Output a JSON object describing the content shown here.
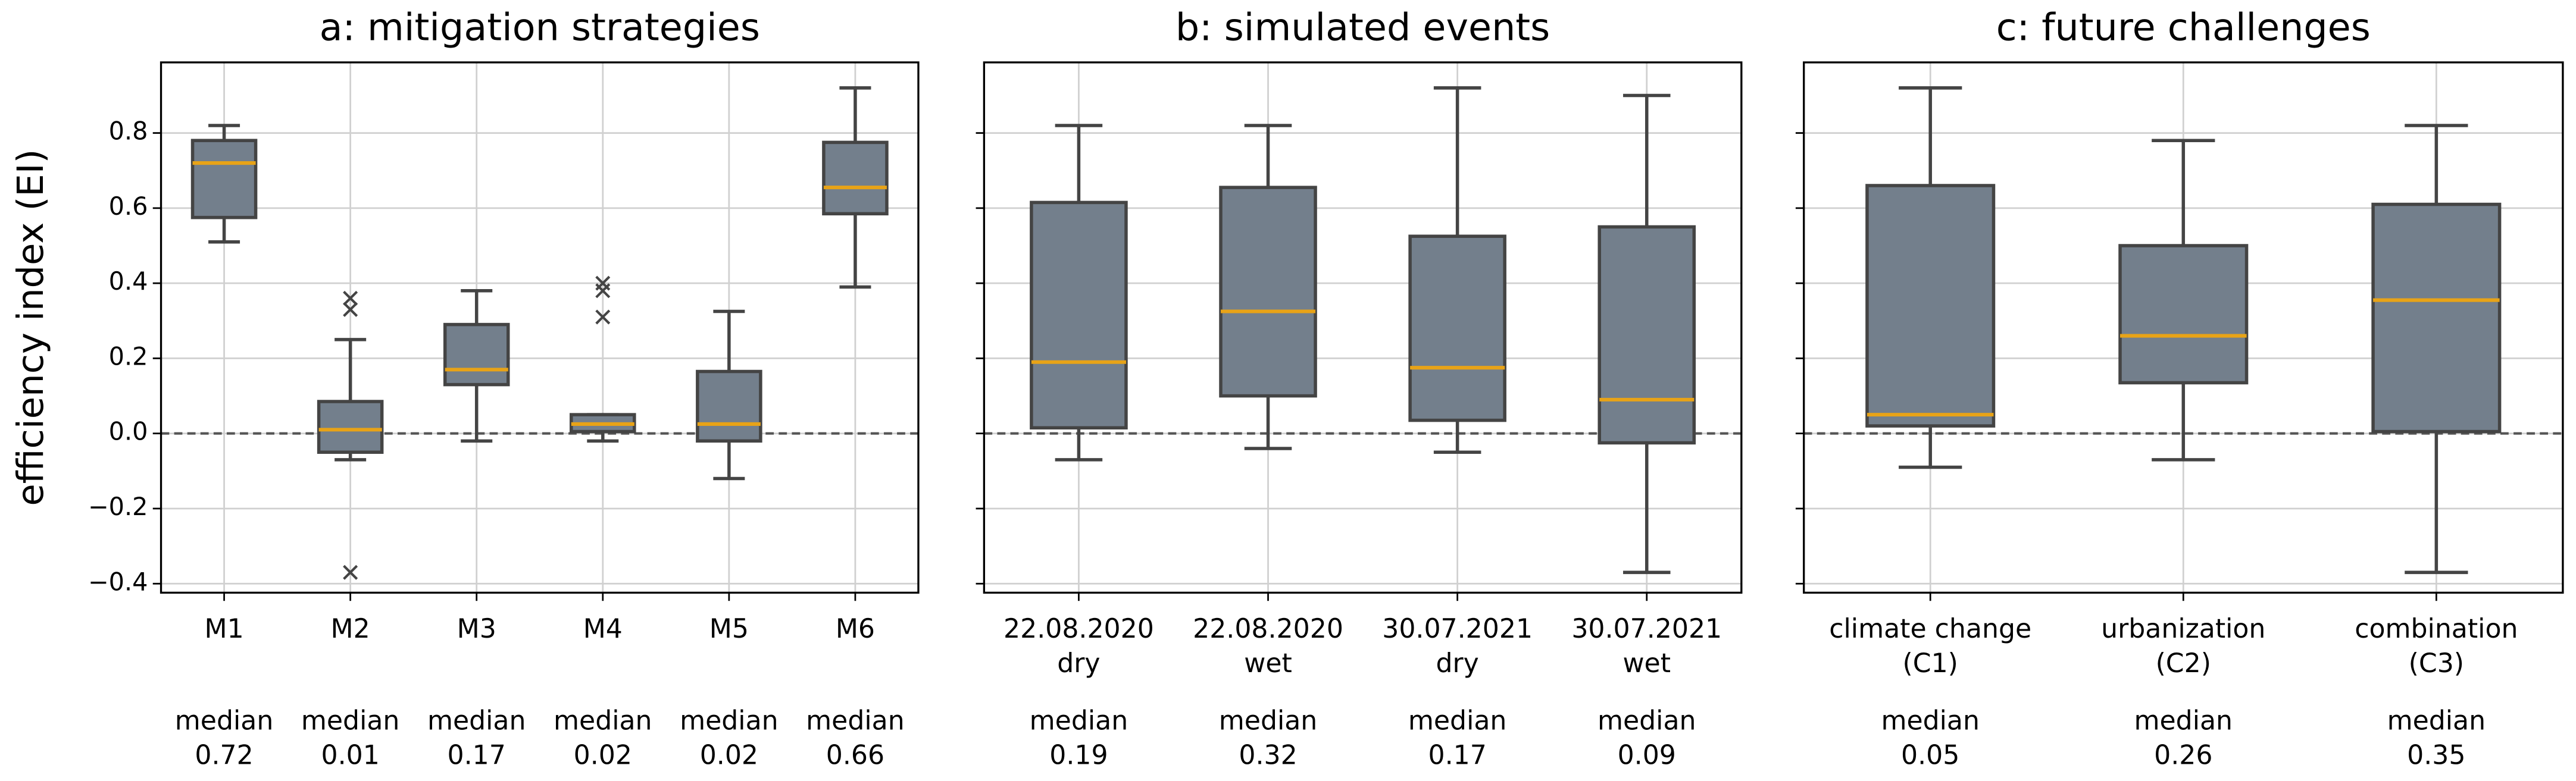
{
  "chart_data": [
    {
      "type": "box",
      "title": "a:  mitigation strategies",
      "ylabel": "efficiency index (EI)",
      "categories": [
        [
          "M1"
        ],
        [
          "M2"
        ],
        [
          "M3"
        ],
        [
          "M4"
        ],
        [
          "M5"
        ],
        [
          "M6"
        ]
      ],
      "boxes": [
        {
          "whislo": 0.51,
          "q1": 0.575,
          "med": 0.72,
          "q3": 0.78,
          "whishi": 0.82,
          "fliers": []
        },
        {
          "whislo": -0.07,
          "q1": -0.05,
          "med": 0.01,
          "q3": 0.085,
          "whishi": 0.25,
          "fliers": [
            0.36,
            0.33,
            -0.37
          ]
        },
        {
          "whislo": -0.02,
          "q1": 0.13,
          "med": 0.17,
          "q3": 0.29,
          "whishi": 0.38,
          "fliers": []
        },
        {
          "whislo": -0.02,
          "q1": 0.005,
          "med": 0.025,
          "q3": 0.05,
          "whishi": 0.05,
          "fliers": [
            0.4,
            0.38,
            0.31
          ]
        },
        {
          "whislo": -0.12,
          "q1": -0.02,
          "med": 0.025,
          "q3": 0.165,
          "whishi": 0.325,
          "fliers": []
        },
        {
          "whislo": 0.39,
          "q1": 0.585,
          "med": 0.655,
          "q3": 0.775,
          "whishi": 0.92,
          "fliers": []
        }
      ],
      "annotations": [
        [
          "median",
          "0.72"
        ],
        [
          "median",
          "0.01"
        ],
        [
          "median",
          "0.17"
        ],
        [
          "median",
          "0.02"
        ],
        [
          "median",
          "0.02"
        ],
        [
          "median",
          "0.66"
        ]
      ],
      "color": "#737f8c",
      "median_color": "#e8a317",
      "reference_line": 0,
      "ylim": [
        -0.424,
        0.988
      ],
      "yticks": [
        {
          "value": -0.4,
          "label": "−0.4"
        },
        {
          "value": -0.2,
          "label": "−0.2"
        },
        {
          "value": 0,
          "label": "0.0"
        },
        0.2,
        0.4,
        0.6,
        0.8
      ],
      "grid": true
    },
    {
      "type": "box",
      "title": "b:  simulated events",
      "categories": [
        [
          "22.08.2020",
          "dry"
        ],
        [
          "22.08.2020",
          "wet"
        ],
        [
          "30.07.2021",
          "dry"
        ],
        [
          "30.07.2021",
          "wet"
        ]
      ],
      "boxes": [
        {
          "whislo": -0.07,
          "q1": 0.015,
          "med": 0.19,
          "q3": 0.615,
          "whishi": 0.82,
          "fliers": []
        },
        {
          "whislo": -0.04,
          "q1": 0.1,
          "med": 0.325,
          "q3": 0.655,
          "whishi": 0.82,
          "fliers": []
        },
        {
          "whislo": -0.05,
          "q1": 0.035,
          "med": 0.175,
          "q3": 0.525,
          "whishi": 0.92,
          "fliers": []
        },
        {
          "whislo": -0.37,
          "q1": -0.025,
          "med": 0.09,
          "q3": 0.55,
          "whishi": 0.9,
          "fliers": []
        }
      ],
      "annotations": [
        [
          "median",
          "0.19"
        ],
        [
          "median",
          "0.32"
        ],
        [
          "median",
          "0.17"
        ],
        [
          "median",
          "0.09"
        ]
      ],
      "color": "#737f8c",
      "median_color": "#e8a317",
      "reference_line": 0,
      "ylim": [
        -0.424,
        0.988
      ],
      "yticks": [
        -0.4,
        -0.2,
        0,
        0.2,
        0.4,
        0.6,
        0.8
      ],
      "grid": true
    },
    {
      "type": "box",
      "title": "c:  future challenges",
      "categories": [
        [
          "climate change",
          "(C1)"
        ],
        [
          "urbanization",
          "(C2)"
        ],
        [
          "combination",
          "(C3)"
        ]
      ],
      "boxes": [
        {
          "whislo": -0.09,
          "q1": 0.02,
          "med": 0.05,
          "q3": 0.66,
          "whishi": 0.92,
          "fliers": []
        },
        {
          "whislo": -0.07,
          "q1": 0.135,
          "med": 0.26,
          "q3": 0.5,
          "whishi": 0.78,
          "fliers": []
        },
        {
          "whislo": -0.37,
          "q1": 0.005,
          "med": 0.355,
          "q3": 0.61,
          "whishi": 0.82,
          "fliers": []
        }
      ],
      "annotations": [
        [
          "median",
          "0.05"
        ],
        [
          "median",
          "0.26"
        ],
        [
          "median",
          "0.35"
        ]
      ],
      "color": "#737f8c",
      "median_color": "#e8a317",
      "reference_line": 0,
      "ylim": [
        -0.424,
        0.988
      ],
      "yticks": [
        -0.4,
        -0.2,
        0,
        0.2,
        0.4,
        0.6,
        0.8
      ],
      "grid": true
    }
  ]
}
